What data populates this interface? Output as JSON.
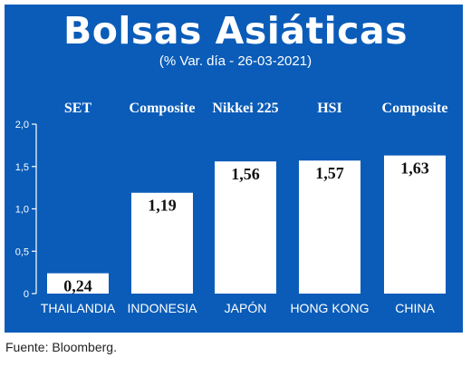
{
  "header": {
    "title": "Bolsas Asiáticas",
    "subtitle": "(% Var. día - 26-03-2021)"
  },
  "footer": {
    "source": "Fuente: Bloomberg."
  },
  "colors": {
    "background": "#0a5cb8",
    "bar": "#ffffff",
    "text": "#ffffff",
    "value_label": "#111111"
  },
  "chart_data": {
    "type": "bar",
    "title": "Bolsas Asiáticas",
    "subtitle": "(% Var. día - 26-03-2021)",
    "categories": [
      "THAILANDIA",
      "INDONESIA",
      "JAPÓN",
      "HONG KONG",
      "CHINA"
    ],
    "indices": [
      "SET",
      "Composite",
      "Nikkei 225",
      "HSI",
      "Composite"
    ],
    "values": [
      0.24,
      1.19,
      1.56,
      1.57,
      1.63
    ],
    "value_labels": [
      "0,24",
      "1,19",
      "1,56",
      "1,57",
      "1,63"
    ],
    "yticks": [
      "0",
      "0,5",
      "1,0",
      "1,5",
      "2,0"
    ],
    "ytick_values": [
      0,
      0.5,
      1.0,
      1.5,
      2.0
    ],
    "ylim": [
      0,
      2.0
    ],
    "xlabel": "",
    "ylabel": "",
    "grid": false
  }
}
